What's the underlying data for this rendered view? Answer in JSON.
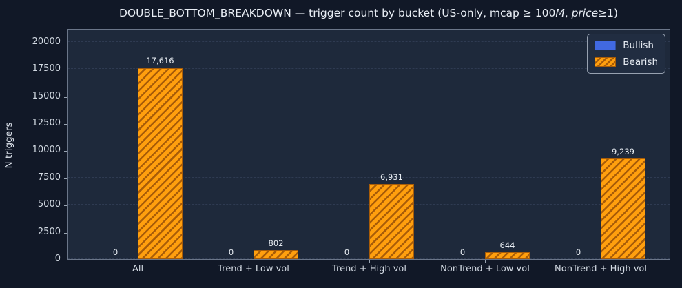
{
  "figure": {
    "title_pre": "DOUBLE_BOTTOM_BREAKDOWN — trigger count by bucket (US-only, mcap ≥ 100",
    "title_italic_m": "M",
    "title_mid": ", ",
    "title_italic_price": "price",
    "title_post": "≥1)"
  },
  "chart_data": {
    "type": "bar",
    "title": "DOUBLE_BOTTOM_BREAKDOWN — trigger count by bucket (US-only, mcap ≥ 100M, price≥1)",
    "xlabel": "",
    "ylabel": "N triggers",
    "categories": [
      "All",
      "Trend + Low vol",
      "Trend + High vol",
      "NonTrend + Low vol",
      "NonTrend + High vol"
    ],
    "series": [
      {
        "name": "Bullish",
        "color": "#4169e1",
        "values": [
          0,
          0,
          0,
          0,
          0
        ],
        "labels": [
          "0",
          "0",
          "0",
          "0",
          "0"
        ]
      },
      {
        "name": "Bearish",
        "color": "#ff9f0e",
        "hatch": "//",
        "hatch_color": "#a85c08",
        "values": [
          17616,
          802,
          6931,
          644,
          9239
        ],
        "labels": [
          "17,616",
          "802",
          "6,931",
          "644",
          "9,239"
        ]
      }
    ],
    "yticks": [
      0,
      2500,
      5000,
      7500,
      10000,
      12500,
      15000,
      17500,
      20000
    ],
    "ylim": [
      0,
      21139
    ],
    "grid": "horizontal dashed at yticks",
    "legend_position": "upper right",
    "background_color": "#111827",
    "axes_background_color": "#1e293b"
  }
}
